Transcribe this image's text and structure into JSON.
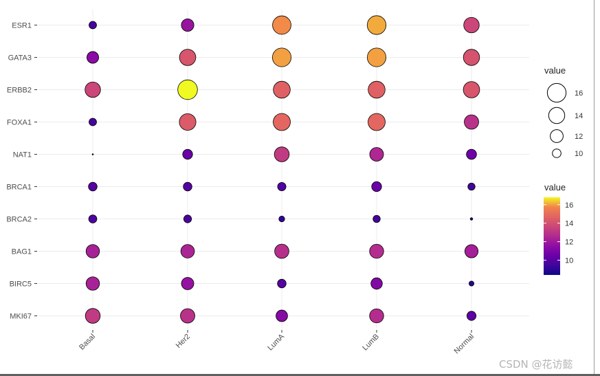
{
  "chart_data": {
    "type": "dot",
    "categories": [
      "Basal",
      "Her2",
      "LumA",
      "LumB",
      "Normal"
    ],
    "genes": [
      "ESR1",
      "GATA3",
      "ERBB2",
      "FOXA1",
      "NAT1",
      "BRCA1",
      "BRCA2",
      "BAG1",
      "BIRC5",
      "MKI67"
    ],
    "values": {
      "ESR1": [
        9.6,
        11.8,
        15.8,
        16.1,
        13.6
      ],
      "GATA3": [
        11.4,
        14.2,
        16.0,
        16.0,
        14.1
      ],
      "ERBB2": [
        13.6,
        16.8,
        14.6,
        14.6,
        14.2
      ],
      "FOXA1": [
        9.6,
        14.4,
        14.8,
        14.8,
        12.9
      ],
      "NAT1": [
        8.4,
        10.5,
        13.2,
        12.5,
        10.6
      ],
      "BRCA1": [
        10.0,
        10.0,
        9.9,
        10.5,
        9.5
      ],
      "BRCA2": [
        9.8,
        9.7,
        9.1,
        9.5,
        8.5
      ],
      "BAG1": [
        12.3,
        12.4,
        12.8,
        12.7,
        12.2
      ],
      "BIRC5": [
        12.3,
        11.7,
        10.0,
        11.2,
        8.9
      ],
      "MKI67": [
        13.2,
        12.9,
        11.3,
        12.7,
        10.2
      ]
    },
    "size_legend": {
      "title": "value",
      "breaks": [
        16,
        14,
        12,
        10
      ]
    },
    "color_legend": {
      "title": "value",
      "breaks": [
        16,
        14,
        12,
        10
      ],
      "range": [
        8.4,
        16.8
      ],
      "palette": "plasma"
    },
    "grid": true
  },
  "watermark": "CSDN @花访懿"
}
